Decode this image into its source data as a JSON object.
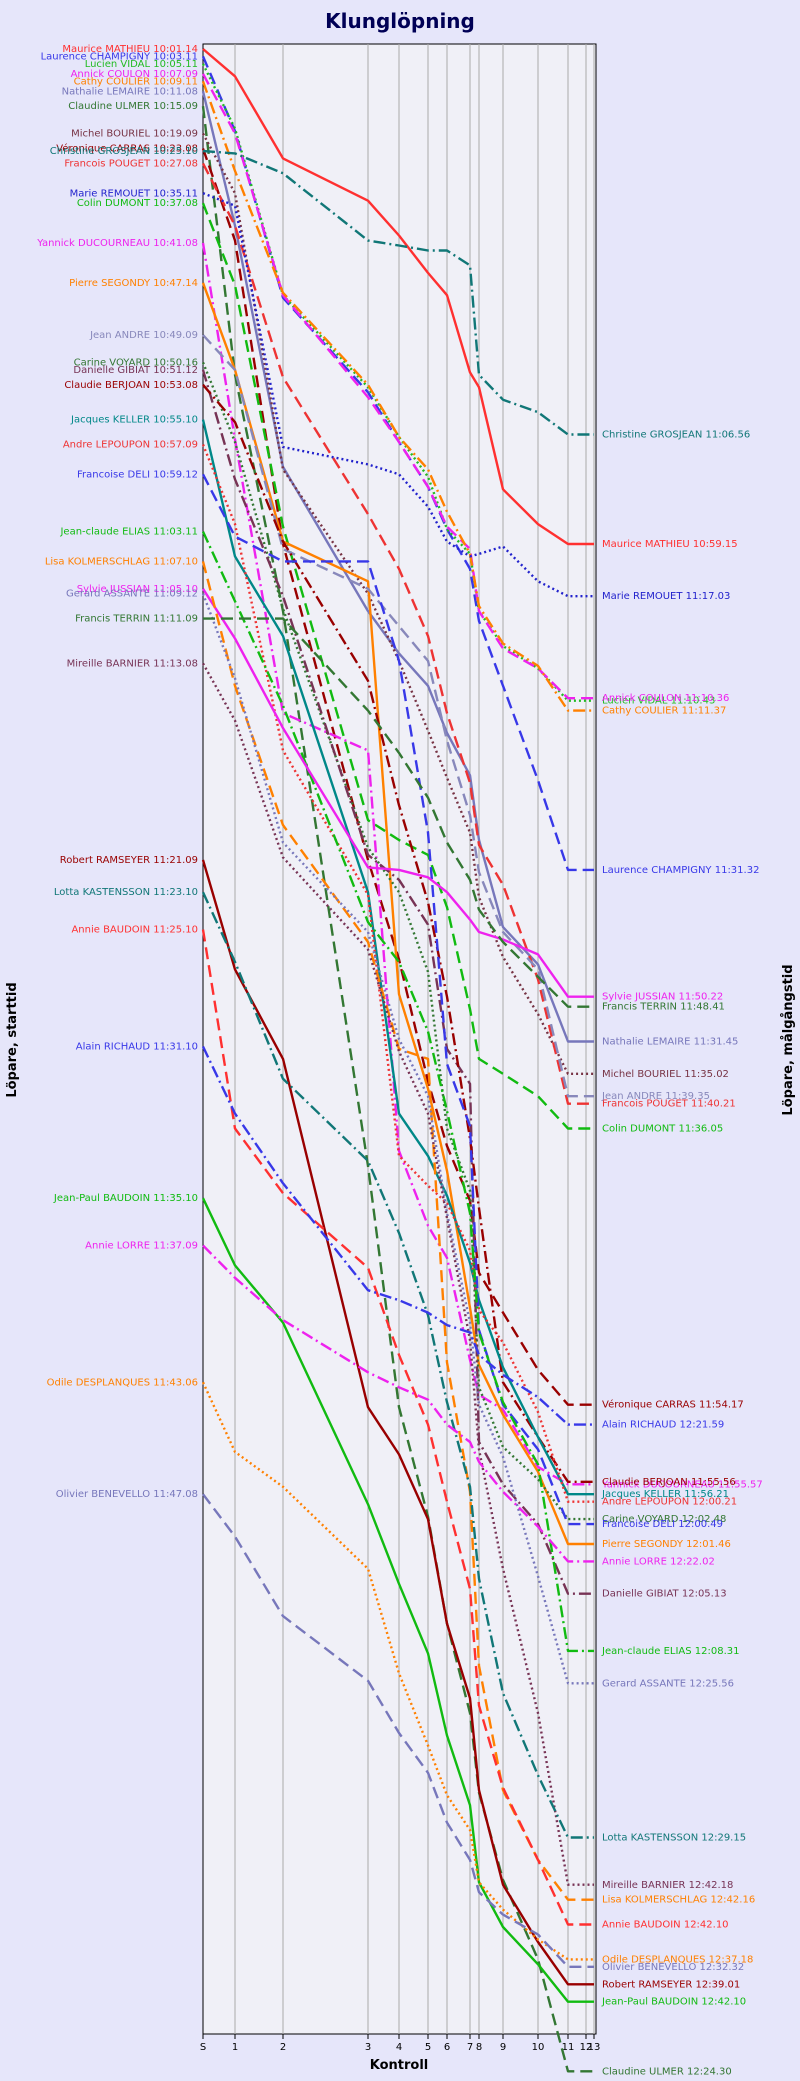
{
  "chart_data": {
    "type": "line",
    "title": "Klunglöpning",
    "xlabel": "Kontroll",
    "ylabel_left": "Löpare, starttid",
    "ylabel_right": "Löpare, målgångstid",
    "x_ticks": [
      "S",
      "1",
      "2",
      "3",
      "4",
      "5",
      "6",
      "7",
      "8",
      "9",
      "10",
      "11",
      "12",
      "13"
    ],
    "grid": true,
    "series": [
      {
        "name": "Maurice MATHIEU",
        "start": "10:01.14",
        "finish": "10:59.15",
        "color": "#ff3030",
        "dash": "solid",
        "y": [
          10.02,
          10.13,
          10.46,
          10.63,
          10.77,
          10.92,
          11.01,
          11.32,
          11.38,
          11.79,
          11.93,
          12.01
        ]
      },
      {
        "name": "Laurence CHAMPIGNY",
        "start": "10:03.11",
        "finish": "11:31.32",
        "color": "#3838e8",
        "dash": "dash",
        "y": [
          10.05,
          10.35,
          11.02,
          11.4,
          11.6,
          11.78,
          11.95,
          12.11,
          12.32,
          12.58,
          12.96,
          13.32
        ]
      },
      {
        "name": "Lucien VIDAL",
        "start": "10:05.11",
        "finish": "11:10.43",
        "color": "#22bb22",
        "dash": "dot",
        "y": [
          10.08,
          10.34,
          11.01,
          11.38,
          11.58,
          11.74,
          11.95,
          12.05,
          12.28,
          12.42,
          12.51,
          12.64
        ]
      },
      {
        "name": "Annick COULON",
        "start": "10:07.09",
        "finish": "11:10.36",
        "color": "#ee22ee",
        "dash": "dash",
        "y": [
          10.12,
          10.36,
          11.01,
          11.42,
          11.6,
          11.78,
          11.94,
          12.03,
          12.28,
          12.43,
          12.51,
          12.63
        ]
      },
      {
        "name": "Cathy COULIER",
        "start": "10:09.11",
        "finish": "11:11.37",
        "color": "#ff8000",
        "dash": "dashdot",
        "y": [
          10.15,
          10.51,
          11.0,
          11.37,
          11.58,
          11.71,
          11.88,
          12.05,
          12.26,
          12.41,
          12.5,
          12.68
        ]
      },
      {
        "name": "Nathalie LEMAIRE",
        "start": "10:11.08",
        "finish": "11:31.45",
        "color": "#7777bb",
        "dash": "solid",
        "y": [
          10.19,
          10.73,
          11.7,
          12.28,
          12.45,
          12.58,
          12.77,
          12.94,
          13.2,
          13.55,
          13.7,
          14.01
        ]
      },
      {
        "name": "Claudine ULMER",
        "start": "10:15.09",
        "finish": "12:24.30",
        "color": "#337733",
        "dash": "dash",
        "y": [
          10.25,
          11.33,
          12.28,
          14.51,
          15.48,
          15.92,
          16.35,
          16.71,
          17.03,
          17.38,
          17.7,
          18.15
        ]
      },
      {
        "name": "Michel BOURIEL",
        "start": "10:19.09",
        "finish": "11:35.02",
        "color": "#773344",
        "dash": "dot",
        "y": [
          10.36,
          10.6,
          11.71,
          12.21,
          12.48,
          12.76,
          12.95,
          13.17,
          13.43,
          13.67,
          13.9,
          14.14
        ]
      },
      {
        "name": "Véronique CARRAS",
        "start": "10:23.08",
        "finish": "11:54.17",
        "color": "#990000",
        "dash": "dash",
        "y": [
          10.42,
          10.79,
          12.01,
          13.28,
          13.68,
          14.17,
          14.43,
          14.65,
          14.94,
          15.1,
          15.33,
          15.47
        ]
      },
      {
        "name": "Christine GROSJEAN",
        "start": "10:25.10",
        "finish": "11:06.56",
        "color": "#117777",
        "dash": "dashdot",
        "y": [
          10.43,
          10.44,
          10.52,
          10.79,
          10.81,
          10.83,
          10.83,
          10.89,
          11.33,
          11.43,
          11.48,
          11.57
        ]
      },
      {
        "name": "Francois POUGET",
        "start": "10:27.08",
        "finish": "11:40.21",
        "color": "#ee3333",
        "dash": "dash",
        "y": [
          10.48,
          10.73,
          11.34,
          11.89,
          12.11,
          12.38,
          12.69,
          12.97,
          13.22,
          13.38,
          13.76,
          14.26
        ]
      },
      {
        "name": "Marie REMOUET",
        "start": "10:35.11",
        "finish": "11:17.03",
        "color": "#2222cc",
        "dash": "dot",
        "y": [
          10.6,
          10.65,
          11.62,
          11.69,
          11.73,
          11.86,
          12.0,
          12.06,
          12.05,
          12.02,
          12.16,
          12.22
        ]
      },
      {
        "name": "Colin DUMONT",
        "start": "10:37.08",
        "finish": "11:36.05",
        "color": "#11bb11",
        "dash": "dash",
        "y": [
          10.64,
          10.97,
          11.94,
          13.12,
          13.2,
          13.26,
          13.47,
          13.88,
          14.08,
          14.14,
          14.23,
          14.36
        ]
      },
      {
        "name": "Yannick DUCOURNEAU",
        "start": "10:41.08",
        "finish": "11:55.57",
        "color": "#ee22ee",
        "dash": "dashdot",
        "y": [
          10.8,
          11.59,
          12.69,
          12.84,
          14.45,
          14.75,
          14.88,
          15.29,
          15.43,
          15.49,
          15.72,
          15.79
        ]
      },
      {
        "name": "Pierre SEGONDY",
        "start": "10:47.14",
        "finish": "12:01.46",
        "color": "#ff8000",
        "dash": "solid",
        "y": [
          10.96,
          11.31,
          12.0,
          12.16,
          13.82,
          14.2,
          14.53,
          15.08,
          15.31,
          15.51,
          15.74,
          16.03
        ]
      },
      {
        "name": "Jean ANDRE",
        "start": "10:49.09",
        "finish": "11:39.35",
        "color": "#8888bb",
        "dash": "dash",
        "y": [
          11.17,
          11.31,
          12.03,
          12.19,
          12.34,
          12.48,
          12.8,
          13.1,
          13.33,
          13.57,
          13.72,
          14.23
        ]
      },
      {
        "name": "Carine VOYARD",
        "start": "10:50.16",
        "finish": "12:02.48",
        "color": "#337733",
        "dash": "dot",
        "y": [
          11.28,
          11.6,
          12.27,
          13.23,
          13.41,
          13.73,
          14.36,
          14.61,
          15.4,
          15.64,
          15.77,
          15.93
        ]
      },
      {
        "name": "Danielle GIBIAT",
        "start": "10:51.12",
        "finish": "12:05.13",
        "color": "#773355",
        "dash": "dashdot",
        "y": [
          11.31,
          11.75,
          12.22,
          13.26,
          13.36,
          13.54,
          14.04,
          14.18,
          15.62,
          15.79,
          15.95,
          16.23
        ]
      },
      {
        "name": "Claudie BERJOAN",
        "start": "10:53.08",
        "finish": "11:55.56",
        "color": "#990000",
        "dash": "dashdot",
        "y": [
          11.37,
          11.52,
          12.0,
          12.56,
          13.06,
          13.45,
          13.83,
          14.4,
          14.68,
          15.38,
          15.6,
          15.78
        ]
      },
      {
        "name": "Jacques KELLER",
        "start": "10:55.10",
        "finish": "11:56.21",
        "color": "#008888",
        "dash": "solid",
        "y": [
          11.51,
          12.06,
          12.38,
          13.41,
          14.3,
          14.47,
          14.63,
          14.9,
          15.05,
          15.32,
          15.6,
          15.83
        ]
      },
      {
        "name": "Andre LEPOUPON",
        "start": "10:57.09",
        "finish": "12:00.21",
        "color": "#ee3333",
        "dash": "dot",
        "y": [
          11.61,
          11.93,
          12.84,
          13.42,
          14.47,
          14.59,
          14.66,
          14.85,
          15.09,
          15.22,
          15.5,
          15.86
        ]
      },
      {
        "name": "Francoise DELI",
        "start": "10:59.12",
        "finish": "12:00.49",
        "color": "#3838e8",
        "dash": "dash",
        "y": [
          11.73,
          11.98,
          12.08,
          12.08,
          12.48,
          13.17,
          14.1,
          14.35,
          15.17,
          15.47,
          15.65,
          15.95
        ]
      },
      {
        "name": "Jean-claude ELIAS",
        "start": "11:03.11",
        "finish": "12:08.31",
        "color": "#11bb11",
        "dash": "dashdot",
        "y": [
          11.96,
          12.24,
          12.66,
          13.53,
          13.69,
          13.97,
          14.29,
          14.7,
          15.18,
          15.46,
          15.71,
          16.46
        ]
      },
      {
        "name": "Sylvie JUSSIAN",
        "start": "11:05.10",
        "finish": "11:50.22",
        "color": "#ee22ee",
        "dash": "solid",
        "y": [
          12.19,
          12.39,
          12.75,
          13.31,
          13.32,
          13.35,
          13.41,
          13.52,
          13.57,
          13.6,
          13.66,
          13.83
        ]
      },
      {
        "name": "Lisa KOLMERSCHLAG",
        "start": "11:07.10",
        "finish": "12:42.16",
        "color": "#ff8000",
        "dash": "dash",
        "y": [
          12.08,
          12.58,
          13.14,
          13.61,
          14.04,
          14.08,
          15.3,
          15.82,
          16.52,
          17.02,
          17.3,
          17.46
        ]
      },
      {
        "name": "Gerard ASSANTE",
        "start": "11:09.12",
        "finish": "12:25.56",
        "color": "#7777bb",
        "dash": "dot",
        "y": [
          12.21,
          12.55,
          13.21,
          13.57,
          14.0,
          14.23,
          14.7,
          15.14,
          15.47,
          15.68,
          16.16,
          16.59
        ]
      },
      {
        "name": "Francis TERRIN",
        "start": "11:11.09",
        "finish": "11:48.41",
        "color": "#337733",
        "dash": "dash",
        "y": [
          12.31,
          12.31,
          12.31,
          12.68,
          12.85,
          13.03,
          13.21,
          13.36,
          13.48,
          13.61,
          13.75,
          13.87
        ]
      },
      {
        "name": "Mireille BARNIER",
        "start": "11:13.08",
        "finish": "12:42.18",
        "color": "#773355",
        "dash": "dot",
        "y": [
          12.49,
          12.72,
          13.27,
          13.64,
          14.05,
          14.3,
          14.72,
          15.21,
          15.65,
          16.13,
          16.71,
          17.4
        ]
      },
      {
        "name": "Robert RAMSEYER",
        "start": "11:21.09",
        "finish": "12:39.01",
        "color": "#990000",
        "dash": "solid",
        "y": [
          13.28,
          13.72,
          14.08,
          15.48,
          15.67,
          15.93,
          16.35,
          16.65,
          17.02,
          17.4,
          17.63,
          17.8
        ]
      },
      {
        "name": "Lotta KASTENSSON",
        "start": "11:23.10",
        "finish": "12:29.15",
        "color": "#117777",
        "dash": "dashdot",
        "y": [
          13.41,
          13.69,
          14.16,
          14.49,
          14.78,
          15.11,
          15.46,
          15.8,
          16.17,
          16.63,
          16.96,
          17.21
        ]
      },
      {
        "name": "Annie BAUDOIN",
        "start": "11:25.10",
        "finish": "12:42.10",
        "color": "#ff3030",
        "dash": "dash",
        "y": [
          13.56,
          14.36,
          14.62,
          14.92,
          15.27,
          15.55,
          15.86,
          16.21,
          16.68,
          17.01,
          17.3,
          17.56
        ]
      },
      {
        "name": "Alain RICHAUD",
        "start": "11:31.10",
        "finish": "12:21.59",
        "color": "#3838e8",
        "dash": "dashdot",
        "y": [
          14.03,
          14.3,
          14.58,
          15.01,
          15.05,
          15.1,
          15.15,
          15.18,
          15.27,
          15.35,
          15.44,
          15.55
        ]
      },
      {
        "name": "Jean-Paul BAUDOIN",
        "start": "11:35.10",
        "finish": "12:42.10",
        "color": "#11bb11",
        "dash": "solid",
        "y": [
          14.64,
          14.91,
          15.14,
          15.87,
          16.19,
          16.47,
          16.8,
          17.08,
          17.39,
          17.57,
          17.72,
          17.87
        ]
      },
      {
        "name": "Annie LORRE",
        "start": "11:37.09",
        "finish": "12:22.02",
        "color": "#ee22ee",
        "dash": "dashdot",
        "y": [
          14.83,
          14.96,
          15.13,
          15.34,
          15.4,
          15.45,
          15.55,
          15.62,
          15.7,
          15.82,
          15.96,
          16.1
        ]
      },
      {
        "name": "Odile DESPLANQUES",
        "start": "11:43.06",
        "finish": "12:37.18",
        "color": "#ff8000",
        "dash": "dot",
        "y": [
          15.38,
          15.66,
          15.8,
          16.13,
          16.55,
          16.84,
          17.04,
          17.18,
          17.39,
          17.5,
          17.62,
          17.7
        ]
      },
      {
        "name": "Olivier BENEVELLO",
        "start": "11:47.08",
        "finish": "12:32.32",
        "color": "#7777bb",
        "dash": "dash",
        "y": [
          15.83,
          16.0,
          16.32,
          16.58,
          16.79,
          16.95,
          17.15,
          17.3,
          17.43,
          17.52,
          17.6,
          17.73
        ]
      }
    ]
  }
}
